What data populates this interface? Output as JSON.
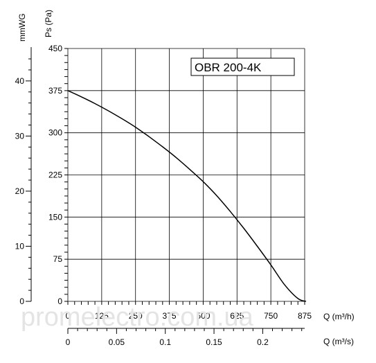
{
  "chart_data": {
    "type": "line",
    "title": "OBR 200-4K",
    "x_flow_m3h": {
      "label": "Q (m³/h)",
      "range": [
        0,
        875
      ],
      "ticks": [
        0,
        125,
        250,
        375,
        500,
        625,
        750,
        875
      ]
    },
    "x_flow_m3s": {
      "label": "Q (m³/s)",
      "ticks": [
        {
          "value": 0,
          "text": "0"
        },
        {
          "value": 0.05,
          "text": "0.05"
        },
        {
          "value": 0.1,
          "text": "0.1"
        },
        {
          "value": 0.15,
          "text": "0.15"
        },
        {
          "value": 0.2,
          "text": "0.2"
        }
      ]
    },
    "y_pressure_pa": {
      "label": "Ps (Pa)",
      "range": [
        0,
        450
      ],
      "ticks": [
        0,
        75,
        150,
        225,
        300,
        375,
        450
      ]
    },
    "y_pressure_mmwg": {
      "label": "mmWG",
      "ticks": [
        0,
        10,
        20,
        30,
        40
      ]
    },
    "grid": true,
    "series": [
      {
        "x": [
          0,
          50,
          100,
          150,
          200,
          250,
          300,
          350,
          400,
          450,
          500,
          550,
          600,
          650,
          700,
          750,
          800,
          850,
          880
        ],
        "y": [
          375,
          364,
          352,
          339,
          325,
          310,
          293,
          275,
          256,
          235,
          213,
          188,
          160,
          130,
          98,
          65,
          30,
          5,
          0
        ]
      }
    ]
  },
  "watermark": "promelectro.com.ua",
  "colors": {
    "curve": "#000000",
    "grid": "#000000",
    "axis": "#000000",
    "watermark": "#e4e4e4"
  }
}
